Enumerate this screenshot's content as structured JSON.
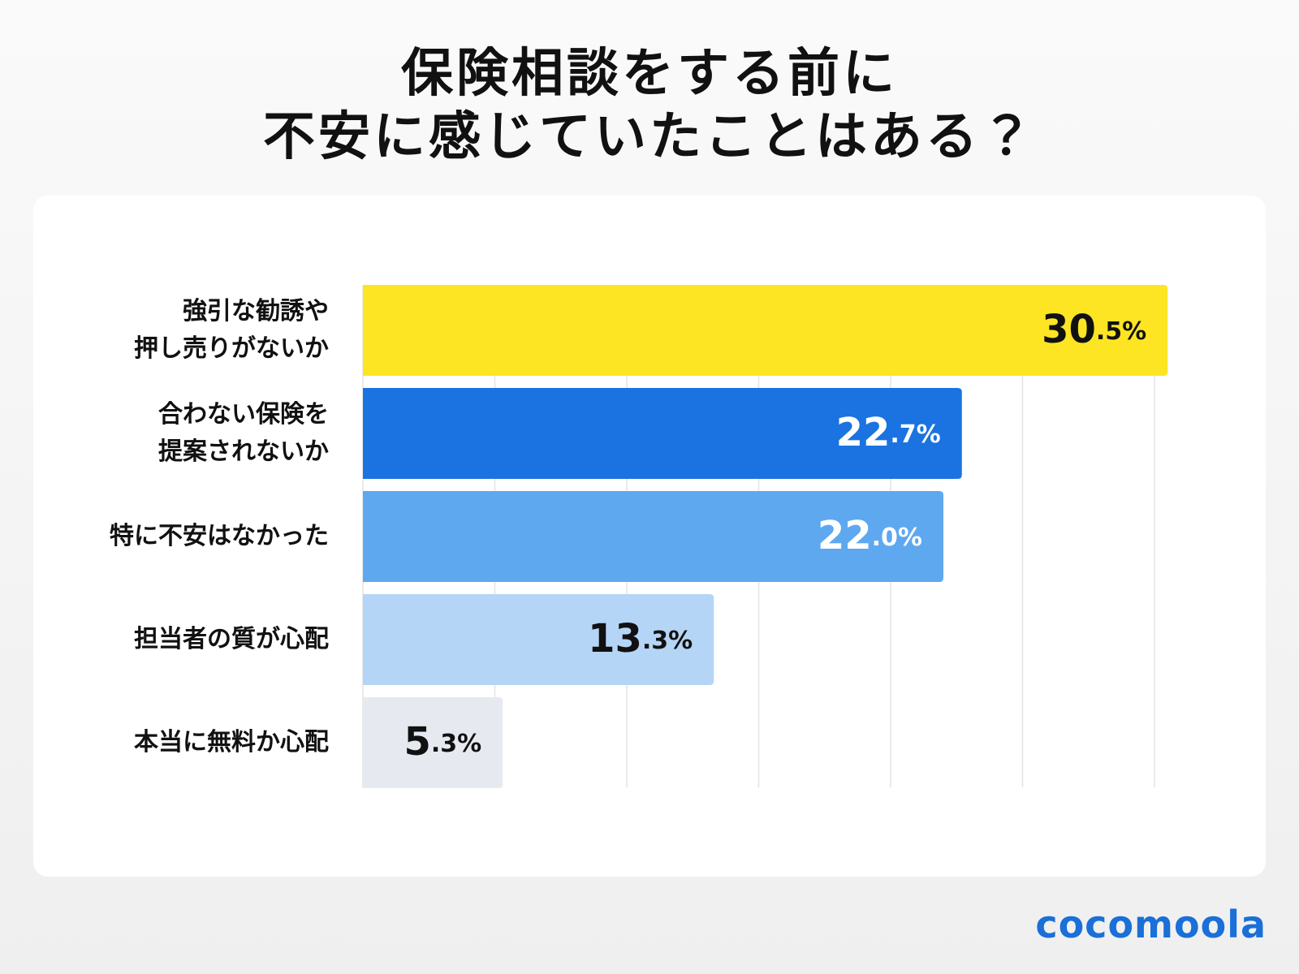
{
  "chart_data": {
    "type": "hbar",
    "title": "保険相談をする前に\n不安に感じていたことはある？",
    "categories": [
      "強引な勧誘や\n押し売りがないか",
      "合わない保険を\n提案されないか",
      "特に不安はなかった",
      "担当者の質が心配",
      "本当に無料か心配"
    ],
    "values": [
      30.5,
      22.7,
      22.0,
      13.3,
      5.3
    ],
    "value_labels": [
      "30.5%",
      "22.7%",
      "22.0%",
      "13.3%",
      "5.3%"
    ],
    "colors": [
      "#fde524",
      "#1a73e0",
      "#5ea8f0",
      "#b5d5f6",
      "#e6eaf0"
    ],
    "label_colors": [
      "#111111",
      "#ffffff",
      "#ffffff",
      "#111111",
      "#111111"
    ],
    "xlim": [
      0,
      30
    ],
    "xticks": [
      0,
      5,
      10,
      15,
      20,
      25,
      30
    ],
    "grid": true,
    "brand": "cocomoola"
  }
}
